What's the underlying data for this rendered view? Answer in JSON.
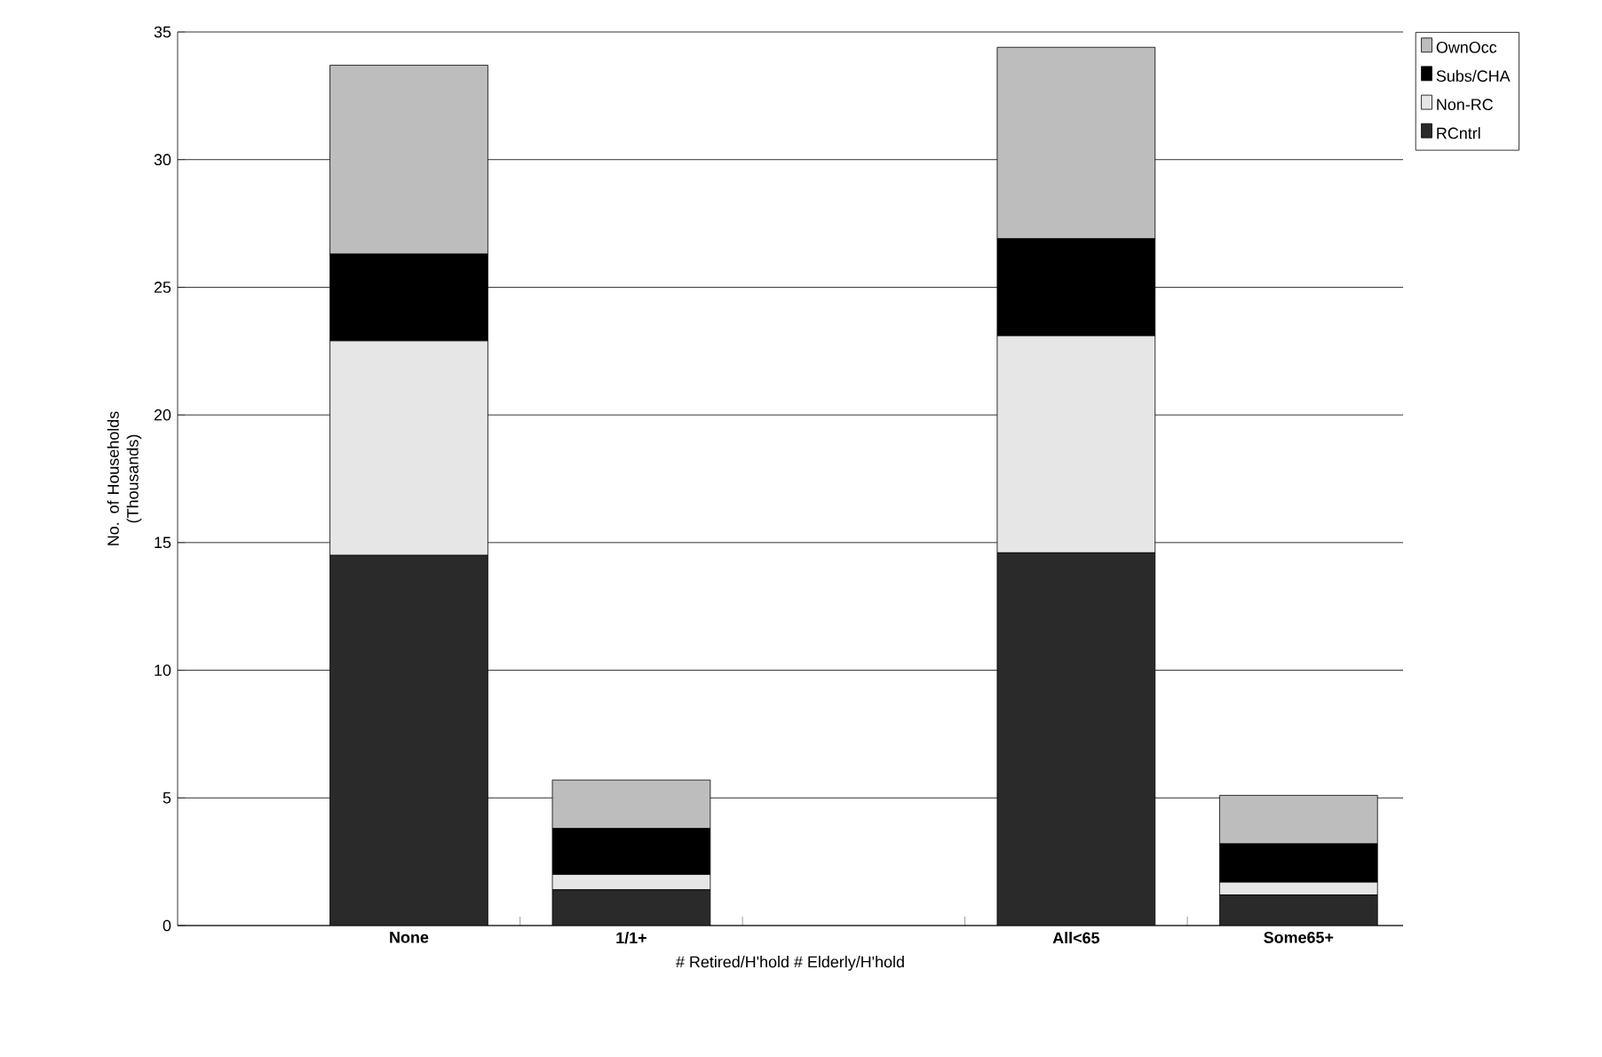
{
  "chart_data": {
    "type": "bar",
    "stacked": true,
    "categories": [
      "None",
      "1/1+",
      null,
      "All<65",
      "Some65+"
    ],
    "xlabel": "# Retired/H'hold    # Elderly/H'hold",
    "ylabel": "No. of Households (Thousands)",
    "ylim": [
      0,
      35
    ],
    "yticks": [
      0,
      5,
      10,
      15,
      20,
      25,
      30,
      35
    ],
    "grid": "y",
    "legend": "right",
    "series": [
      {
        "name": "RCntrl",
        "color": "#2a2a2a",
        "values": [
          14.5,
          1.4,
          null,
          14.6,
          1.2
        ]
      },
      {
        "name": "Non-RC",
        "color": "#e6e6e6",
        "values": [
          8.4,
          0.6,
          null,
          8.5,
          0.5
        ]
      },
      {
        "name": "Subs/CHA",
        "color": "#000000",
        "values": [
          3.4,
          1.8,
          null,
          3.8,
          1.5
        ]
      },
      {
        "name": "OwnOcc",
        "color": "#bdbdbd",
        "values": [
          7.4,
          1.9,
          null,
          7.5,
          1.9
        ]
      }
    ]
  }
}
